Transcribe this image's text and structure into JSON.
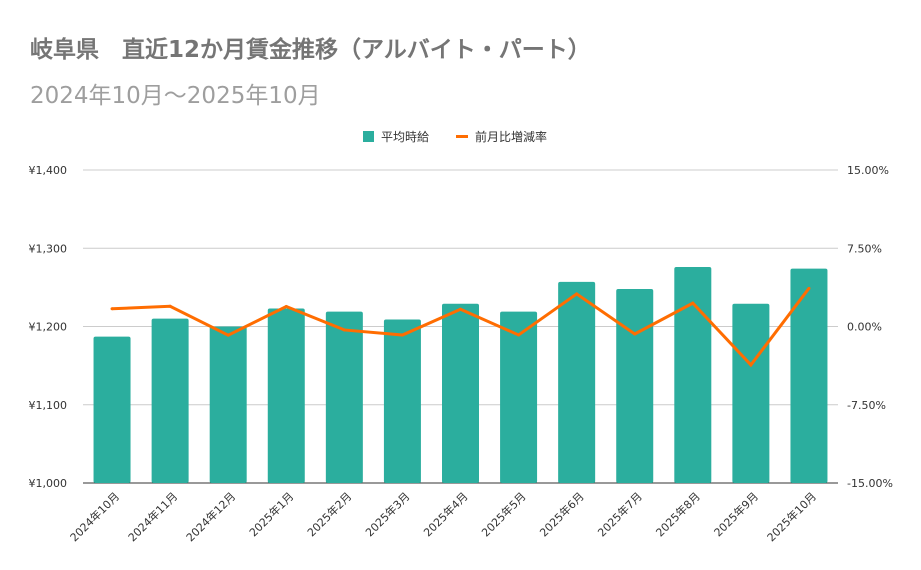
{
  "chart_data": {
    "type": "bar+line",
    "title": "岐阜県　直近12か月賃金推移（アルバイト・パート）",
    "subtitle": "2024年10月～2025年10月",
    "categories": [
      "2024年10月",
      "2024年11月",
      "2024年12月",
      "2025年1月",
      "2025年2月",
      "2025年3月",
      "2025年4月",
      "2025年5月",
      "2025年6月",
      "2025年7月",
      "2025年8月",
      "2025年9月",
      "2025年10月"
    ],
    "series": [
      {
        "name": "平均時給",
        "type": "bar",
        "axis": "left",
        "color": "#2bae9e",
        "values": [
          1187,
          1210,
          1200,
          1223,
          1219,
          1209,
          1229,
          1219,
          1257,
          1248,
          1276,
          1229,
          1274
        ]
      },
      {
        "name": "前月比増減率",
        "type": "line",
        "axis": "right",
        "color": "#ff6d01",
        "values": [
          1.7,
          1.94,
          -0.83,
          1.92,
          -0.33,
          -0.82,
          1.65,
          -0.81,
          3.12,
          -0.72,
          2.24,
          -3.68,
          3.66
        ]
      }
    ],
    "left_axis": {
      "ylim": [
        1000,
        1400
      ],
      "ticks": [
        "¥1,000",
        "¥1,100",
        "¥1,200",
        "¥1,300",
        "¥1,400"
      ]
    },
    "right_axis": {
      "ylim": [
        -15,
        15
      ],
      "ticks": [
        "-15.00%",
        "-7.50%",
        "0.00%",
        "7.50%",
        "15.00%"
      ]
    },
    "grid": true,
    "legend": "top"
  }
}
